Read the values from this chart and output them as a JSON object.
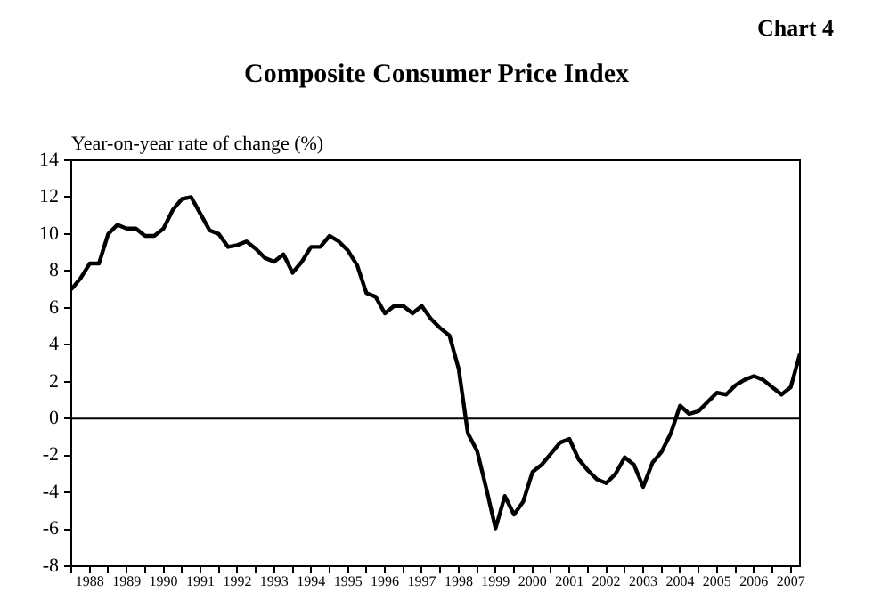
{
  "chart_data": {
    "type": "line",
    "title": "Composite Consumer Price Index",
    "ylabel": "Year-on-year rate of change (%)",
    "annotations": [
      "Chart 4"
    ],
    "x": [
      1988,
      1988.25,
      1988.5,
      1988.75,
      1989,
      1989.25,
      1989.5,
      1989.75,
      1990,
      1990.25,
      1990.5,
      1990.75,
      1991,
      1991.25,
      1991.5,
      1991.75,
      1992,
      1992.25,
      1992.5,
      1992.75,
      1993,
      1993.25,
      1993.5,
      1993.75,
      1994,
      1994.25,
      1994.5,
      1994.75,
      1995,
      1995.25,
      1995.5,
      1995.75,
      1996,
      1996.25,
      1996.5,
      1996.75,
      1997,
      1997.25,
      1997.5,
      1997.75,
      1998,
      1998.25,
      1998.5,
      1998.75,
      1999,
      1999.25,
      1999.5,
      1999.75,
      2000,
      2000.25,
      2000.5,
      2000.75,
      2001,
      2001.25,
      2001.5,
      2001.75,
      2002,
      2002.25,
      2002.5,
      2002.75,
      2003,
      2003.25,
      2003.5,
      2003.75,
      2004,
      2004.25,
      2004.5,
      2004.75,
      2005,
      2005.25,
      2005.5,
      2005.75,
      2006,
      2006.25,
      2006.5,
      2006.75,
      2007,
      2007.25,
      2007.5,
      2007.75
    ],
    "series": [
      {
        "color": "#000000",
        "values": [
          7.0,
          7.6,
          8.4,
          8.4,
          10.0,
          10.5,
          10.3,
          10.3,
          9.9,
          9.9,
          10.3,
          11.3,
          11.9,
          12.0,
          11.1,
          10.2,
          10.0,
          9.3,
          9.4,
          9.6,
          9.2,
          8.7,
          8.5,
          8.9,
          7.9,
          8.5,
          9.3,
          9.3,
          9.9,
          9.6,
          9.1,
          8.3,
          6.8,
          6.6,
          5.7,
          6.1,
          6.1,
          5.7,
          6.1,
          5.4,
          4.9,
          4.5,
          2.7,
          -0.8,
          -1.75,
          -3.8,
          -5.95,
          -4.2,
          -5.2,
          -4.5,
          -2.9,
          -2.5,
          -1.9,
          -1.3,
          -1.1,
          -2.2,
          -2.8,
          -3.3,
          -3.5,
          -3.0,
          -2.1,
          -2.5,
          -3.7,
          -2.4,
          -1.8,
          -0.8,
          0.7,
          0.25,
          0.4,
          0.9,
          1.4,
          1.3,
          1.8,
          2.1,
          2.3,
          2.1,
          1.7,
          1.3,
          1.7,
          3.5
        ]
      }
    ],
    "xlim": [
      1988,
      2007.75
    ],
    "xticks": [
      {
        "value": 1988,
        "label": null
      },
      {
        "value": 1988.5,
        "label": "1988"
      },
      {
        "value": 1989,
        "label": null
      },
      {
        "value": 1989.5,
        "label": "1989"
      },
      {
        "value": 1990,
        "label": null
      },
      {
        "value": 1990.5,
        "label": "1990"
      },
      {
        "value": 1991,
        "label": null
      },
      {
        "value": 1991.5,
        "label": "1991"
      },
      {
        "value": 1992,
        "label": null
      },
      {
        "value": 1992.5,
        "label": "1992"
      },
      {
        "value": 1993,
        "label": null
      },
      {
        "value": 1993.5,
        "label": "1993"
      },
      {
        "value": 1994,
        "label": null
      },
      {
        "value": 1994.5,
        "label": "1994"
      },
      {
        "value": 1995,
        "label": null
      },
      {
        "value": 1995.5,
        "label": "1995"
      },
      {
        "value": 1996,
        "label": null
      },
      {
        "value": 1996.5,
        "label": "1996"
      },
      {
        "value": 1997,
        "label": null
      },
      {
        "value": 1997.5,
        "label": "1997"
      },
      {
        "value": 1998,
        "label": null
      },
      {
        "value": 1998.5,
        "label": "1998"
      },
      {
        "value": 1999,
        "label": null
      },
      {
        "value": 1999.5,
        "label": "1999"
      },
      {
        "value": 2000,
        "label": null
      },
      {
        "value": 2000.5,
        "label": "2000"
      },
      {
        "value": 2001,
        "label": null
      },
      {
        "value": 2001.5,
        "label": "2001"
      },
      {
        "value": 2002,
        "label": null
      },
      {
        "value": 2002.5,
        "label": "2002"
      },
      {
        "value": 2003,
        "label": null
      },
      {
        "value": 2003.5,
        "label": "2003"
      },
      {
        "value": 2004,
        "label": null
      },
      {
        "value": 2004.5,
        "label": "2004"
      },
      {
        "value": 2005,
        "label": null
      },
      {
        "value": 2005.5,
        "label": "2005"
      },
      {
        "value": 2006,
        "label": null
      },
      {
        "value": 2006.5,
        "label": "2006"
      },
      {
        "value": 2007,
        "label": null
      },
      {
        "value": 2007.5,
        "label": "2007"
      }
    ],
    "ylim": [
      -8,
      14
    ],
    "yticks": [
      -8,
      -6,
      -4,
      -2,
      0,
      2,
      4,
      6,
      8,
      10,
      12,
      14
    ],
    "ref_lines": [
      {
        "axis": "y",
        "value": 0,
        "color": "#000000"
      }
    ],
    "grid": false,
    "legend": false,
    "marker": "none",
    "line_style": "solid"
  }
}
